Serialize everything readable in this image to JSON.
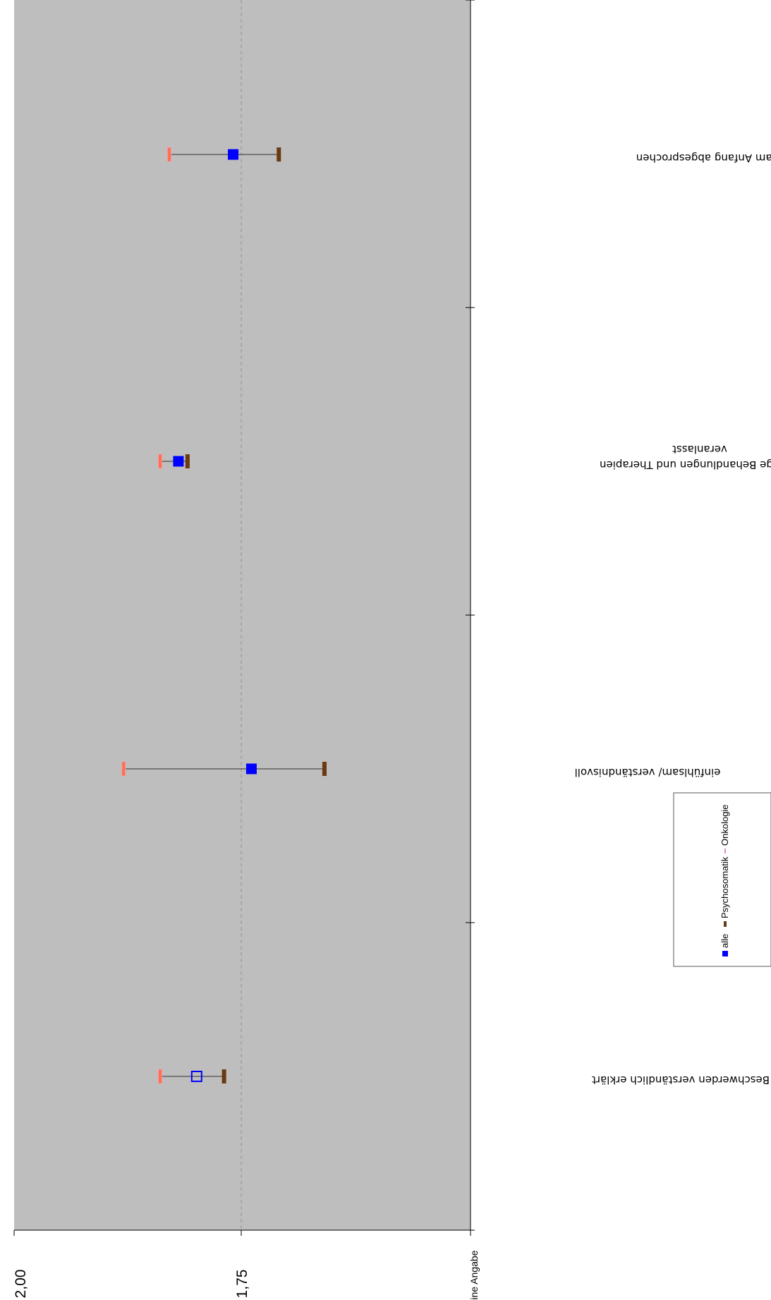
{
  "chart_data": {
    "type": "scatter",
    "categories": [
      "Beschwerden verständlich erklärt",
      "einfühlsam/ verständnisvoll",
      "richtige Behandlungen und Therapien veranlasst",
      "Ziele der Reha gleich am Anfang abgesprochen"
    ],
    "y_axis": {
      "ticks": [
        "2,00",
        "1,75",
        "keine Angabe"
      ],
      "range": [
        1.5,
        2.0
      ]
    },
    "series": [
      {
        "name": "alle",
        "color": "#0000ff",
        "marker": "square",
        "values": [
          1.8,
          1.74,
          1.82,
          1.76
        ]
      },
      {
        "name": "Psychosomatik",
        "color": "#6b3a10",
        "marker": "bar",
        "values": [
          1.77,
          1.66,
          1.81,
          1.71
        ]
      },
      {
        "name": "Onkologie",
        "color": "#ff6f50",
        "marker": "bar",
        "values": [
          1.84,
          1.88,
          1.84,
          1.83
        ]
      }
    ],
    "hollow_marker_category": 0,
    "legend_position": "bottom",
    "grid": "reference line at 1,75",
    "orientation": "rotated 90° clockwise"
  }
}
